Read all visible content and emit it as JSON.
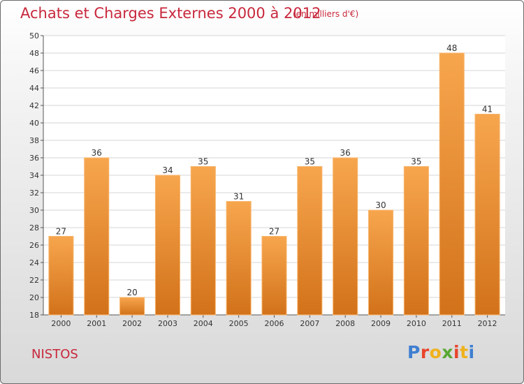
{
  "header": {
    "title": "Achats et Charges Externes 2000 à 2012",
    "subtitle": "(en milliers d'€)"
  },
  "footer": {
    "commune": "NISTOS",
    "logo_text": "Proxiti",
    "logo_colors": [
      "#3f7fd1",
      "#e8452c",
      "#f0b21c",
      "#58a832",
      "#e8452c",
      "#f0b21c",
      "#3f7fd1"
    ]
  },
  "chart_data": {
    "type": "bar",
    "title": "Achats et Charges Externes 2000 à 2012",
    "subtitle": "(en milliers d'€)",
    "xlabel": "",
    "ylabel": "",
    "categories": [
      "2000",
      "2001",
      "2002",
      "2003",
      "2004",
      "2005",
      "2006",
      "2007",
      "2008",
      "2009",
      "2010",
      "2011",
      "2012"
    ],
    "values": [
      27,
      36,
      20,
      34,
      35,
      31,
      27,
      35,
      36,
      30,
      35,
      48,
      41
    ],
    "ylim": [
      18,
      50
    ],
    "yticks": [
      18,
      20,
      22,
      24,
      26,
      28,
      30,
      32,
      34,
      36,
      38,
      40,
      42,
      44,
      46,
      48,
      50
    ],
    "grid": true,
    "bar_color_top": "#f7a64e",
    "bar_color_bottom": "#d2721a"
  }
}
